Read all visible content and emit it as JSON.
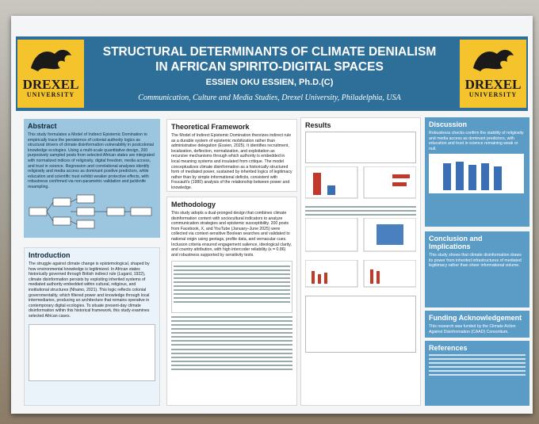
{
  "header": {
    "title": "STRUCTURAL DETERMINANTS OF CLIMATE DENIALISM IN AFRICAN SPIRITO-DIGITAL SPACES",
    "author": "ESSIEN OKU ESSIEN, Ph.D.(C)",
    "affiliation": "Communication, Culture and Media Studies, Drexel University, Philadelphia, USA",
    "logo_name": "DREXEL",
    "logo_sub": "UNIVERSITY"
  },
  "sections": {
    "abstract": {
      "heading": "Abstract",
      "text": "This study formulates a Model of Indirect Epistemic Domination to empirically trace the persistence of colonial authority logics as structural drivers of climate disinformation vulnerability in postcolonial knowledge ecologies. Using a multi-scale quantitative design, 200 purposively sampled posts from selected African states are integrated with normalized indices of religiosity, digital freedom, media access, and trust in science. Regression and correlational analyses identify religiosity and media access as dominant positive predictors, while education and scientific trust exhibit weaker protective effects, with robustness confirmed via non-parametric validation and jackknife resampling."
    },
    "introduction": {
      "heading": "Introduction",
      "text": "The struggle against climate change is epistemological, shaped by how environmental knowledge is legitimized. In African states historically governed through British indirect rule (Lugard, 1922), climate disinformation persists by exploiting inherited systems of mediated authority embedded within cultural, religious, and institutional structures (Nhamo, 2021). This logic reflects colonial governmentality, which filtered power and knowledge through local intermediaries, producing an architecture that remains operative in contemporary digital ecologies. To situate present-day climate disinformation within this historical framework, this study examines selected African cases."
    },
    "theoretical_framework": {
      "heading": "Theoretical Framework",
      "text": "The Model of Indirect Epistemic Domination theorizes indirect rule as a durable system of epistemic mobilization rather than administrative delegation (Essien, 2025). It identifies recruitment, localization, deflection, normalization, and exploitation as recursive mechanisms through which authority is embedded in local meaning systems and insulated from critique. The model conceptualizes climate disinformation as a historically structured form of mediated power, sustained by inherited logics of legitimacy rather than by simple informational deficits, consistent with Foucault's (1980) analysis of the relationship between power and knowledge."
    },
    "methodology": {
      "heading": "Methodology",
      "text": "This study adopts a dual-pronged design that combines climate disinformation content with sociocultural indicators to analyze communication strategies and epistemic susceptibility. 200 posts from Facebook, X, and YouTube (January–June 2025) were collected via context-sensitive Boolean searches and validated to national origin using geotags, profile data, and vernacular cues. Inclusion criteria ensured engagement salience, ideological clarity, and country attribution, with high intercoder reliability (κ = 0.86) and robustness supported by sensitivity tests."
    },
    "results": {
      "heading": "Results"
    },
    "discussion": {
      "heading": "Discussion",
      "text": "Robustness checks confirm the stability of religiosity and media access as dominant predictors, with education and trust in science remaining weak or null."
    },
    "conclusion": {
      "heading": "Conclusion and Implications",
      "text": "This study shows that climate disinformation draws its power from inherited infrastructures of mediated legitimacy rather than sheer informational volume."
    },
    "funding": {
      "heading": "Funding Acknowledgement",
      "text": "This research was funded by the Climate Action Against Disinformation (CAAD) Consortium."
    },
    "references": {
      "heading": "References"
    }
  }
}
